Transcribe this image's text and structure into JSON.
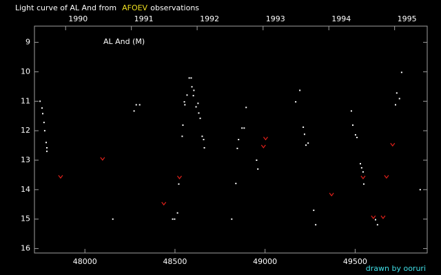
{
  "chart_data": {
    "type": "scatter",
    "title": {
      "before": "Light curve of AL And from",
      "highlight": "AFOEV",
      "after": "observations"
    },
    "label": "AL And (M)",
    "credit": "drawn by ooruri",
    "xlim": [
      47720,
      49900
    ],
    "ylim": [
      16.15,
      8.45
    ],
    "xticks": [
      48000,
      48500,
      49000,
      49500
    ],
    "yticks": [
      9,
      10,
      11,
      12,
      13,
      14,
      15,
      16
    ],
    "x2ticks": [
      {
        "value": 47893,
        "label": "1990"
      },
      {
        "value": 48258,
        "label": "1991"
      },
      {
        "value": 48623,
        "label": "1992"
      },
      {
        "value": 48989,
        "label": "1993"
      },
      {
        "value": 49354,
        "label": "1994"
      },
      {
        "value": 49719,
        "label": "1995"
      }
    ],
    "series": [
      {
        "color": "#ffffff",
        "marker": "dot",
        "x": [
          47751,
          47762,
          47766,
          47773,
          47777,
          47785,
          47789,
          47789,
          48155,
          48273,
          48285,
          48304,
          48487,
          48498,
          48514,
          48521,
          48540,
          48544,
          48552,
          48555,
          48567,
          48579,
          48590,
          48594,
          48602,
          48605,
          48617,
          48628,
          48632,
          48640,
          48651,
          48659,
          48663,
          48815,
          48838,
          48846,
          48853,
          48872,
          48884,
          48895,
          48953,
          48960,
          49170,
          49193,
          49212,
          49219,
          49227,
          49239,
          49270,
          49281,
          49479,
          49487,
          49502,
          49510,
          49529,
          49536,
          49544,
          49548,
          49613,
          49624,
          49724,
          49731,
          49746,
          49758,
          49861
        ],
        "y": [
          11.0,
          11.23,
          11.42,
          11.72,
          12.0,
          12.4,
          12.58,
          12.7,
          15.0,
          11.33,
          11.12,
          11.12,
          15.0,
          15.0,
          14.79,
          13.81,
          12.19,
          11.81,
          11.02,
          11.12,
          10.79,
          10.21,
          10.21,
          10.51,
          10.81,
          10.63,
          11.19,
          11.07,
          11.4,
          11.58,
          12.19,
          12.3,
          12.58,
          15.0,
          13.79,
          12.6,
          12.3,
          11.91,
          11.91,
          11.21,
          13.0,
          13.3,
          11.02,
          10.63,
          11.88,
          12.12,
          12.49,
          12.42,
          14.7,
          15.19,
          11.33,
          11.81,
          12.14,
          12.23,
          13.12,
          13.26,
          13.4,
          13.81,
          15.02,
          15.19,
          11.12,
          10.72,
          10.91,
          10.02,
          14.0
        ]
      },
      {
        "color": "#e0201a",
        "marker": "v",
        "x": [
          47865,
          48098,
          48438,
          48525,
          48991,
          49003,
          49369,
          49544,
          49601,
          49655,
          49674,
          49708
        ],
        "y": [
          13.56,
          12.95,
          14.47,
          13.58,
          12.53,
          12.26,
          14.16,
          13.58,
          14.93,
          14.93,
          13.56,
          12.47
        ]
      }
    ],
    "colors": {
      "text": "#ffffff",
      "highlight": "#f0e020",
      "credit": "#40e0e8",
      "axis": "#a0a0a0"
    }
  }
}
